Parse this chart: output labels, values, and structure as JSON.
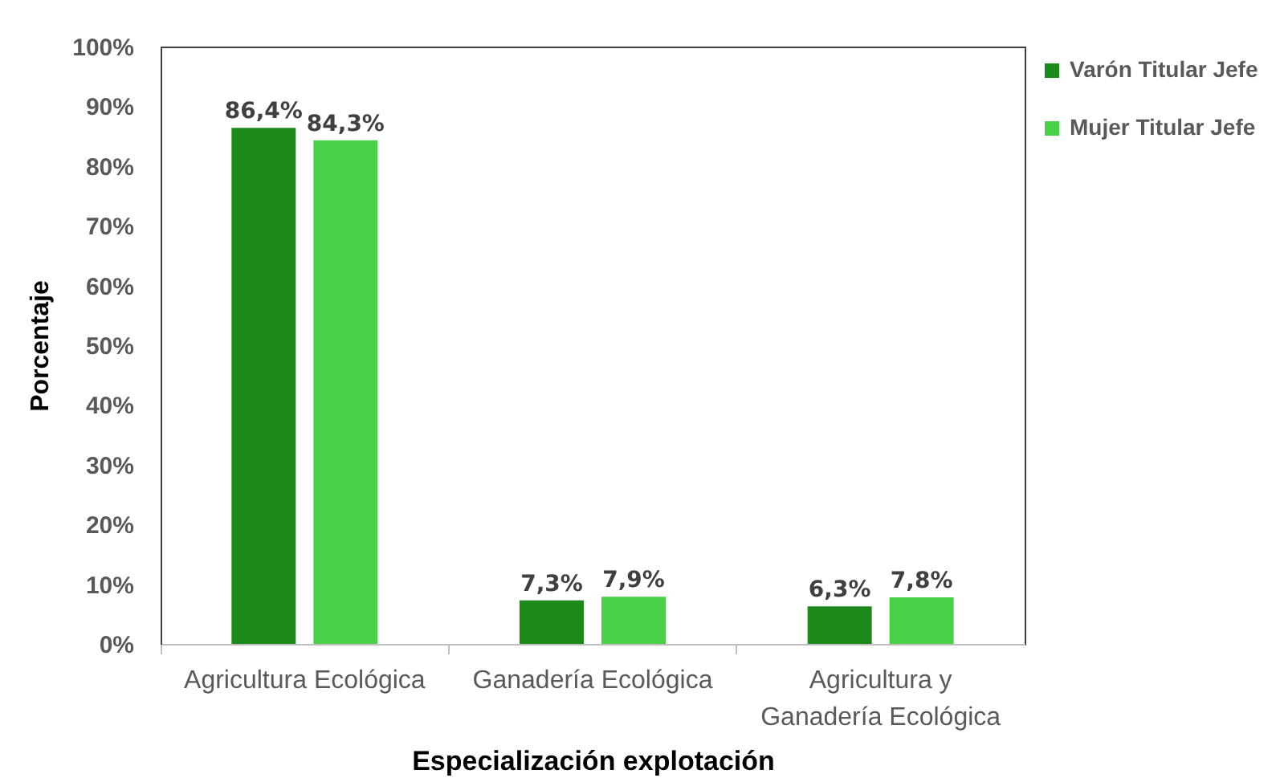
{
  "chart_data": {
    "type": "bar",
    "xlabel": "Especialización explotación",
    "ylabel": "Porcentaje",
    "categories": [
      "Agricultura Ecológica",
      "Ganadería Ecológica",
      "Agricultura y Ganadería Ecológica"
    ],
    "series": [
      {
        "name": "Varón Titular Jefe",
        "color": "#1b8a1b",
        "values": [
          86.4,
          7.3,
          6.3
        ],
        "value_labels": [
          "86,4%",
          "7,3%",
          "6,3%"
        ]
      },
      {
        "name": "Mujer Titular Jefe",
        "color": "#48d048",
        "values": [
          84.3,
          7.9,
          7.8
        ],
        "value_labels": [
          "84,3%",
          "7,9%",
          "7,8%"
        ]
      }
    ],
    "ylim": [
      0,
      100
    ],
    "yticks": [
      {
        "value": 0,
        "label": "0%"
      },
      {
        "value": 10,
        "label": "10%"
      },
      {
        "value": 20,
        "label": "20%"
      },
      {
        "value": 30,
        "label": "30%"
      },
      {
        "value": 40,
        "label": "40%"
      },
      {
        "value": 50,
        "label": "50%"
      },
      {
        "value": 60,
        "label": "60%"
      },
      {
        "value": 70,
        "label": "70%"
      },
      {
        "value": 80,
        "label": "80%"
      },
      {
        "value": 90,
        "label": "90%"
      },
      {
        "value": 100,
        "label": "100%"
      }
    ],
    "legend": "top right",
    "grid": false
  }
}
